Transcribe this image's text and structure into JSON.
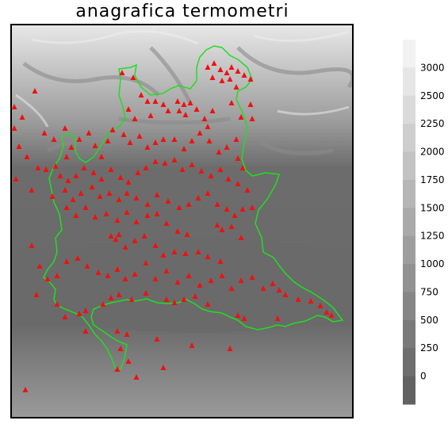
{
  "title": "anagrafica termometri",
  "colorbar": {
    "tick_labels": [
      "3000",
      "2500",
      "2250",
      "2000",
      "1750",
      "1500",
      "1250",
      "1000",
      "750",
      "500",
      "250",
      "0"
    ],
    "bands": [
      "#f2f2f2",
      "#e6e6e6",
      "#dadada",
      "#cecece",
      "#c2c2c2",
      "#b6b6b6",
      "#aaaaaa",
      "#9e9e9e",
      "#929292",
      "#868686",
      "#7a7a7a",
      "#6e6e6e",
      "#626262"
    ]
  },
  "colors": {
    "boundary": "#22dd22",
    "station": "#ee1111",
    "plain": "#6a6a6a"
  }
}
